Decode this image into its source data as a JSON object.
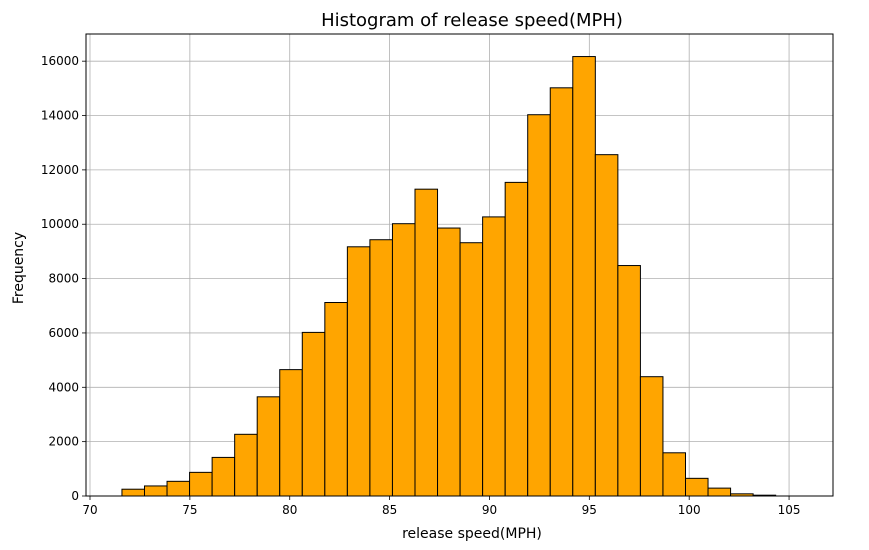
{
  "chart_data": {
    "type": "bar",
    "title": "Histogram of release speed(MPH)",
    "xlabel": "release speed(MPH)",
    "ylabel": "Frequency",
    "xlim": [
      69.8,
      107.2
    ],
    "ylim": [
      0,
      17000
    ],
    "xticks": [
      70,
      75,
      80,
      85,
      90,
      95,
      100,
      105
    ],
    "yticks": [
      0,
      2000,
      4000,
      6000,
      8000,
      10000,
      12000,
      14000,
      16000
    ],
    "grid": true,
    "bar_color": "#ffa500",
    "edge_color": "#000000",
    "bin_width": 1.1286,
    "bin_start": 71.6,
    "values": [
      250,
      370,
      540,
      870,
      1420,
      2270,
      3650,
      4650,
      6020,
      7120,
      9170,
      9430,
      10020,
      11290,
      9860,
      9320,
      10270,
      11540,
      14030,
      15020,
      16170,
      12560,
      8480,
      4390,
      1590,
      650,
      290,
      80,
      30
    ]
  }
}
